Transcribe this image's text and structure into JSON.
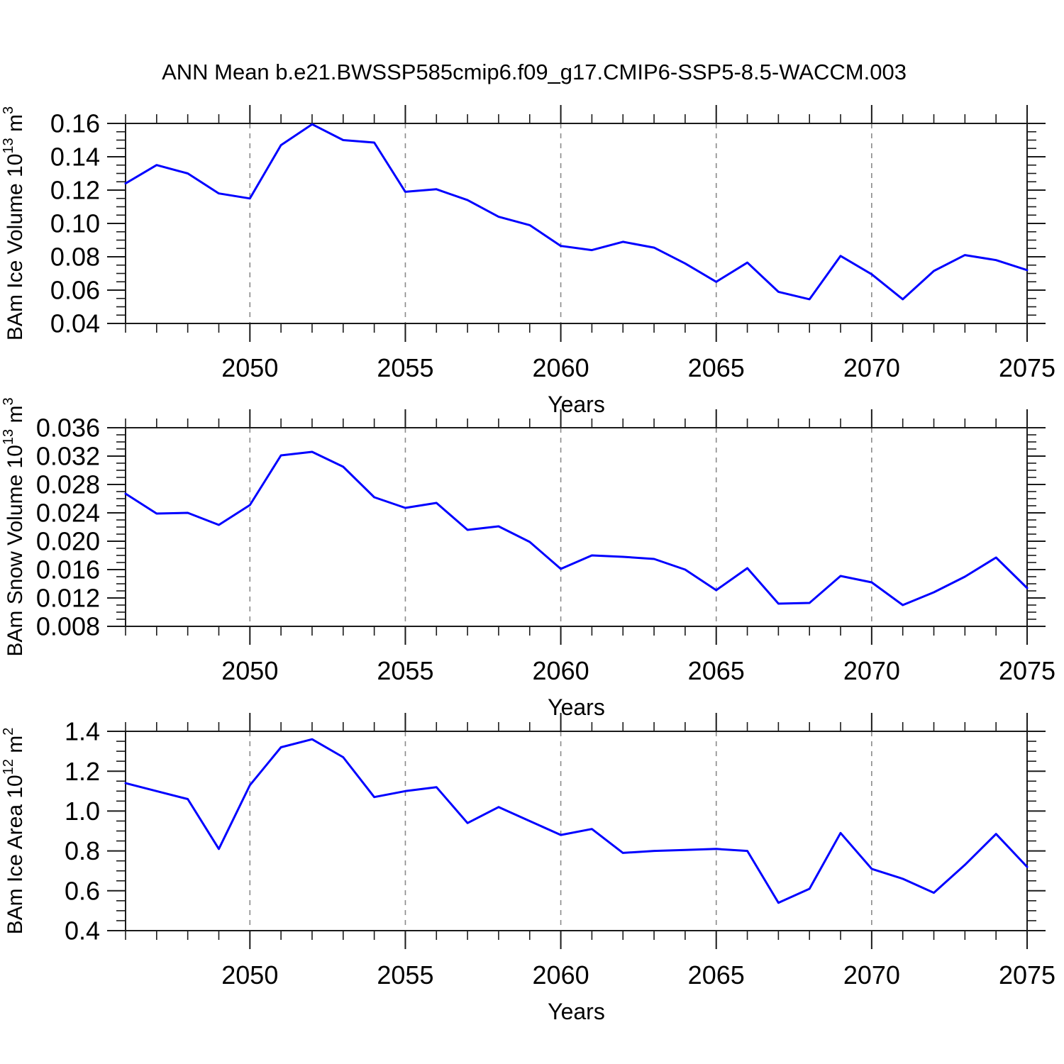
{
  "title": "ANN Mean b.e21.BWSSP585cmip6.f09_g17.CMIP6-SSP5-8.5-WACCM.003",
  "chart_data": {
    "type": "line",
    "title": "ANN Mean b.e21.BWSSP585cmip6.f09_g17.CMIP6-SSP5-8.5-WACCM.003",
    "legend": "none",
    "grid": "vertical-dashed-at-major-x",
    "x_axis": {
      "label": "Years",
      "range": [
        2046,
        2075
      ],
      "major_ticks": [
        2050,
        2055,
        2060,
        2065,
        2070,
        2075
      ],
      "major_tick_labels": [
        "2050",
        "2055",
        "2060",
        "2065",
        "2070",
        "2075"
      ],
      "gridlines": [
        2050,
        2055,
        2060,
        2065,
        2070
      ],
      "minor_step": 1,
      "x": [
        2046,
        2047,
        2048,
        2049,
        2050,
        2051,
        2052,
        2053,
        2054,
        2055,
        2056,
        2057,
        2058,
        2059,
        2060,
        2061,
        2062,
        2063,
        2064,
        2065,
        2066,
        2067,
        2068,
        2069,
        2070,
        2071,
        2072,
        2073,
        2074,
        2075
      ]
    },
    "style": {
      "line_color": "#0000ff",
      "grid_color": "#8a8a8a",
      "axis_color": "#1a1a1a",
      "background": "#ffffff"
    },
    "panels": [
      {
        "name": "ice-volume",
        "ylabel_text": "BAm Ice Volume 10^13 m^3",
        "ylabel_parts": [
          {
            "t": "BAm Ice Volume 10"
          },
          {
            "t": "13",
            "sup": true
          },
          {
            "t": " m"
          },
          {
            "t": "3",
            "sup": true
          }
        ],
        "ylim": [
          0.04,
          0.16
        ],
        "ytick_values": [
          0.04,
          0.06,
          0.08,
          0.1,
          0.12,
          0.14,
          0.16
        ],
        "ytick_labels": [
          "0.04",
          "0.06",
          "0.08",
          "0.10",
          "0.12",
          "0.14",
          "0.16"
        ],
        "y_minor_step": 0.005,
        "values": [
          0.124,
          0.135,
          0.13,
          0.118,
          0.115,
          0.147,
          0.1595,
          0.15,
          0.1485,
          0.119,
          0.1205,
          0.114,
          0.104,
          0.099,
          0.0865,
          0.084,
          0.089,
          0.0855,
          0.076,
          0.065,
          0.0765,
          0.059,
          0.0545,
          0.0805,
          0.0695,
          0.0545,
          0.0715,
          0.081,
          0.078,
          0.072
        ]
      },
      {
        "name": "snow-volume",
        "ylabel_text": "BAm Snow Volume 10^13 m^3",
        "ylabel_parts": [
          {
            "t": "BAm Snow Volume 10"
          },
          {
            "t": "13",
            "sup": true
          },
          {
            "t": " m"
          },
          {
            "t": "3",
            "sup": true
          }
        ],
        "ylim": [
          0.008,
          0.036
        ],
        "ytick_values": [
          0.008,
          0.012,
          0.016,
          0.02,
          0.024,
          0.028,
          0.032,
          0.036
        ],
        "ytick_labels": [
          "0.008",
          "0.012",
          "0.016",
          "0.020",
          "0.024",
          "0.028",
          "0.032",
          "0.036"
        ],
        "y_minor_step": 0.001,
        "values": [
          0.0267,
          0.0239,
          0.024,
          0.0223,
          0.0251,
          0.0321,
          0.0326,
          0.0305,
          0.0262,
          0.0247,
          0.0254,
          0.0216,
          0.0221,
          0.0199,
          0.0161,
          0.018,
          0.0178,
          0.0175,
          0.016,
          0.0131,
          0.0162,
          0.0112,
          0.0113,
          0.0151,
          0.0142,
          0.011,
          0.0128,
          0.015,
          0.0177,
          0.0134
        ]
      },
      {
        "name": "ice-area",
        "ylabel_text": "BAm Ice Area 10^12 m^2",
        "ylabel_parts": [
          {
            "t": "BAm Ice Area 10"
          },
          {
            "t": "12",
            "sup": true
          },
          {
            "t": " m"
          },
          {
            "t": "2",
            "sup": true
          }
        ],
        "ylim": [
          0.4,
          1.4
        ],
        "ytick_values": [
          0.4,
          0.6,
          0.8,
          1.0,
          1.2,
          1.4
        ],
        "ytick_labels": [
          "0.4",
          "0.6",
          "0.8",
          "1.0",
          "1.2",
          "1.4"
        ],
        "y_minor_step": 0.05,
        "values": [
          1.14,
          1.1,
          1.06,
          0.81,
          1.13,
          1.32,
          1.36,
          1.27,
          1.07,
          1.1,
          1.12,
          0.94,
          1.02,
          0.95,
          0.88,
          0.91,
          0.79,
          0.8,
          0.805,
          0.81,
          0.8,
          0.54,
          0.61,
          0.89,
          0.71,
          0.66,
          0.59,
          0.73,
          0.885,
          0.72
        ]
      }
    ]
  }
}
